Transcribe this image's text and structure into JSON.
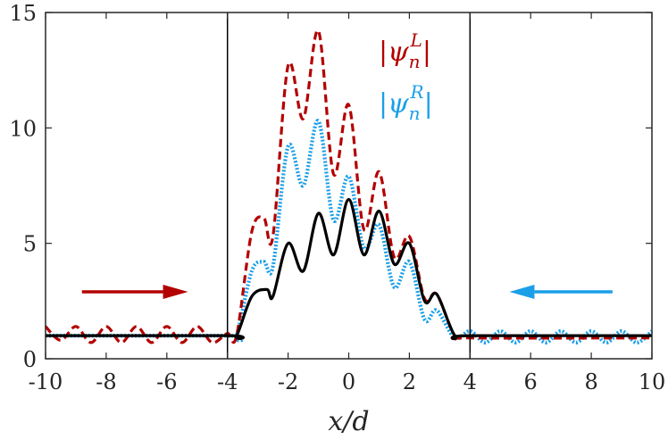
{
  "chart_data": {
    "type": "line",
    "xlabel": "x/d",
    "ylabel": "",
    "xlim": [
      -10,
      10
    ],
    "ylim": [
      0,
      15
    ],
    "xticks": [
      -10,
      -8,
      -6,
      -4,
      -2,
      0,
      2,
      4,
      6,
      8,
      10
    ],
    "yticks": [
      0,
      5,
      10,
      15
    ],
    "grid": false,
    "legend_position": "top-right",
    "vertical_lines": [
      -4,
      4
    ],
    "legend": [
      {
        "base": "|ψ",
        "sub": "n",
        "sup": "L",
        "close": "|",
        "color": "#b30000"
      },
      {
        "base": "|ψ",
        "sub": "n",
        "sup": "R",
        "close": "|",
        "color": "#1a9fe8"
      }
    ],
    "annotations": [
      {
        "type": "arrow",
        "direction": "right",
        "color": "#b30000",
        "x_from": -8.8,
        "x_to": -5.3,
        "y": 2.9
      },
      {
        "type": "arrow",
        "direction": "left",
        "color": "#1a9fe8",
        "x_from": 8.7,
        "x_to": 5.3,
        "y": 2.9
      }
    ],
    "series": [
      {
        "name": "",
        "color": "#000000",
        "style": "solid",
        "x": [
          -10,
          -4,
          -3.7,
          -3.2,
          -2.7,
          -2.5,
          -2.0,
          -1.5,
          -1.0,
          -0.5,
          0.0,
          0.5,
          1.0,
          1.5,
          2.0,
          2.5,
          2.9,
          3.5,
          4.0,
          10
        ],
        "y": [
          1.0,
          1.0,
          1.0,
          2.7,
          3.0,
          2.7,
          5.0,
          3.8,
          6.3,
          4.5,
          6.9,
          4.5,
          6.4,
          4.1,
          5.0,
          2.5,
          2.8,
          1.0,
          1.0,
          1.0
        ]
      },
      {
        "name": "",
        "color": "#b30000",
        "style": "dashed",
        "x": [
          -10,
          -9.5,
          -9,
          -8.5,
          -8,
          -7.5,
          -7,
          -6.5,
          -6,
          -5.5,
          -5,
          -4.5,
          -4,
          -3.7,
          -3.2,
          -2.8,
          -2.5,
          -2.0,
          -1.5,
          -1.0,
          -0.5,
          0.0,
          0.5,
          1.0,
          1.5,
          2.0,
          2.5,
          2.9,
          3.5,
          4.0,
          10
        ],
        "y": [
          1.4,
          0.8,
          1.4,
          0.7,
          1.4,
          0.7,
          1.4,
          0.7,
          1.4,
          0.7,
          1.4,
          0.7,
          1.1,
          1.0,
          5.5,
          6.1,
          5.3,
          12.7,
          10.4,
          14.2,
          8.0,
          11.0,
          5.6,
          8.1,
          4.4,
          5.3,
          2.6,
          2.8,
          1.0,
          0.9,
          0.9
        ]
      },
      {
        "name": "",
        "color": "#1a9fe8",
        "style": "dotted",
        "x": [
          -10,
          -4,
          -3.7,
          -3.2,
          -2.8,
          -2.5,
          -2.0,
          -1.5,
          -1.0,
          -0.5,
          0.0,
          0.5,
          1.0,
          1.5,
          2.0,
          2.5,
          2.9,
          3.5,
          4.0,
          4.5,
          5.0,
          5.5,
          6.0,
          6.5,
          7.0,
          7.5,
          8.0,
          8.5,
          9.0,
          9.5,
          10
        ],
        "y": [
          1.0,
          1.0,
          1.0,
          3.8,
          4.2,
          4.0,
          9.2,
          7.5,
          10.3,
          6.0,
          7.9,
          4.8,
          5.8,
          3.1,
          4.2,
          1.7,
          2.1,
          0.9,
          1.2,
          0.7,
          1.2,
          0.7,
          1.2,
          0.7,
          1.2,
          0.7,
          1.2,
          0.7,
          1.2,
          0.7,
          1.2
        ]
      }
    ]
  }
}
